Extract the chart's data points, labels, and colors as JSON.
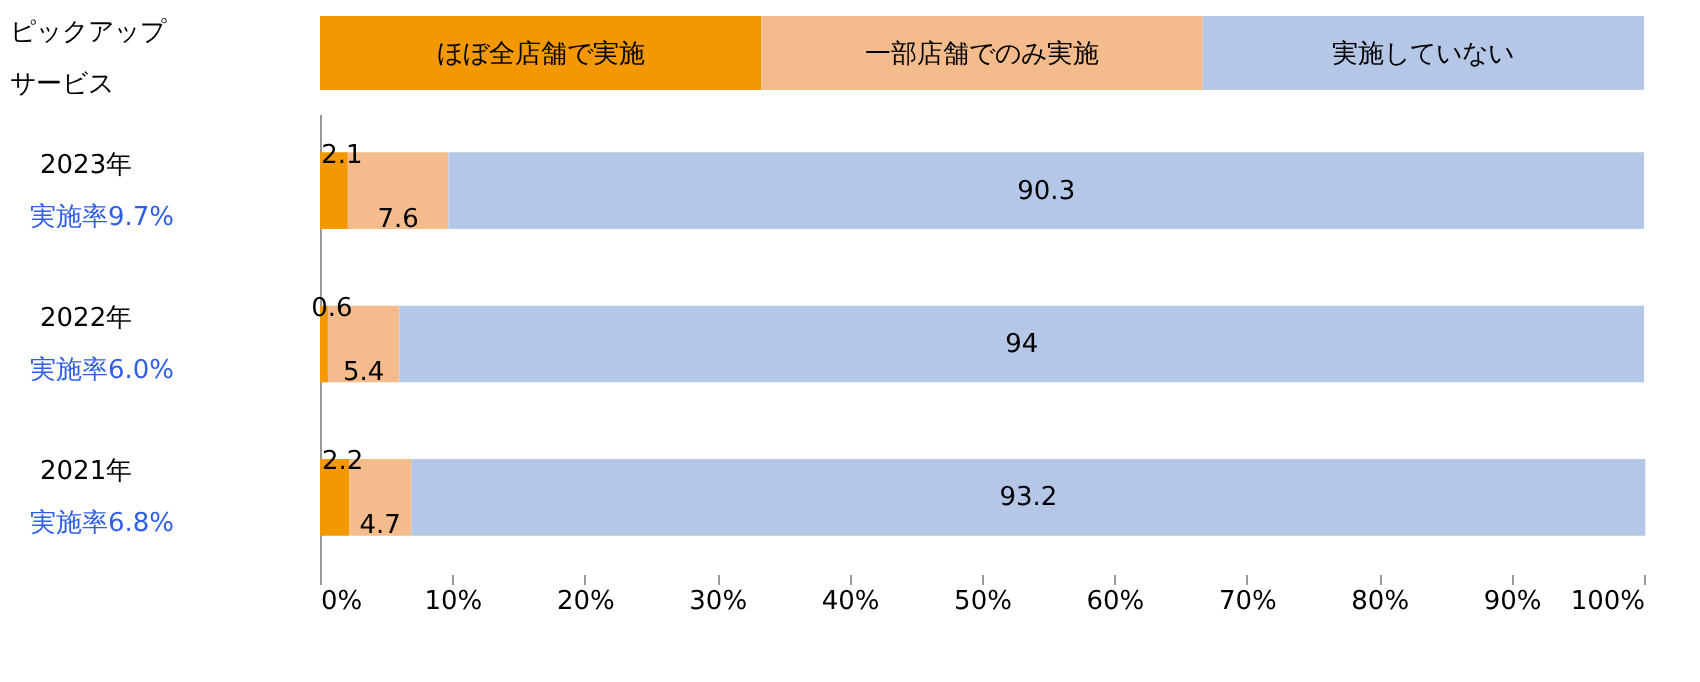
{
  "chart_data": {
    "type": "bar",
    "orientation": "horizontal",
    "stacked": true,
    "title": "ピックアップ",
    "subtitle": "サービス",
    "categories": [
      "2023年",
      "2022年",
      "2021年"
    ],
    "annotations": [
      "実施率9.7%",
      "実施率6.0%",
      "実施率6.8%"
    ],
    "series": [
      {
        "name": "ほぼ全店舗で実施",
        "color": "#f39800",
        "values": [
          2.1,
          0.6,
          2.2
        ]
      },
      {
        "name": "一部店舗でのみ実施",
        "color": "#f4bb8c",
        "values": [
          7.6,
          5.4,
          4.7
        ]
      },
      {
        "name": "実施していない",
        "color": "#b4c7e7",
        "values": [
          90.3,
          94,
          93.2
        ]
      }
    ],
    "xlim": [
      0,
      100
    ],
    "xticks": [
      {
        "value": 0,
        "label": "0%"
      },
      {
        "value": 10,
        "label": "10%"
      },
      {
        "value": 20,
        "label": "20%"
      },
      {
        "value": 30,
        "label": "30%"
      },
      {
        "value": 40,
        "label": "40%"
      },
      {
        "value": 50,
        "label": "50%"
      },
      {
        "value": 60,
        "label": "60%"
      },
      {
        "value": 70,
        "label": "70%"
      },
      {
        "value": 80,
        "label": "80%"
      },
      {
        "value": 90,
        "label": "90%"
      },
      {
        "value": 100,
        "label": "100%"
      }
    ],
    "data_labels": true,
    "legend": "top",
    "grid": false
  }
}
